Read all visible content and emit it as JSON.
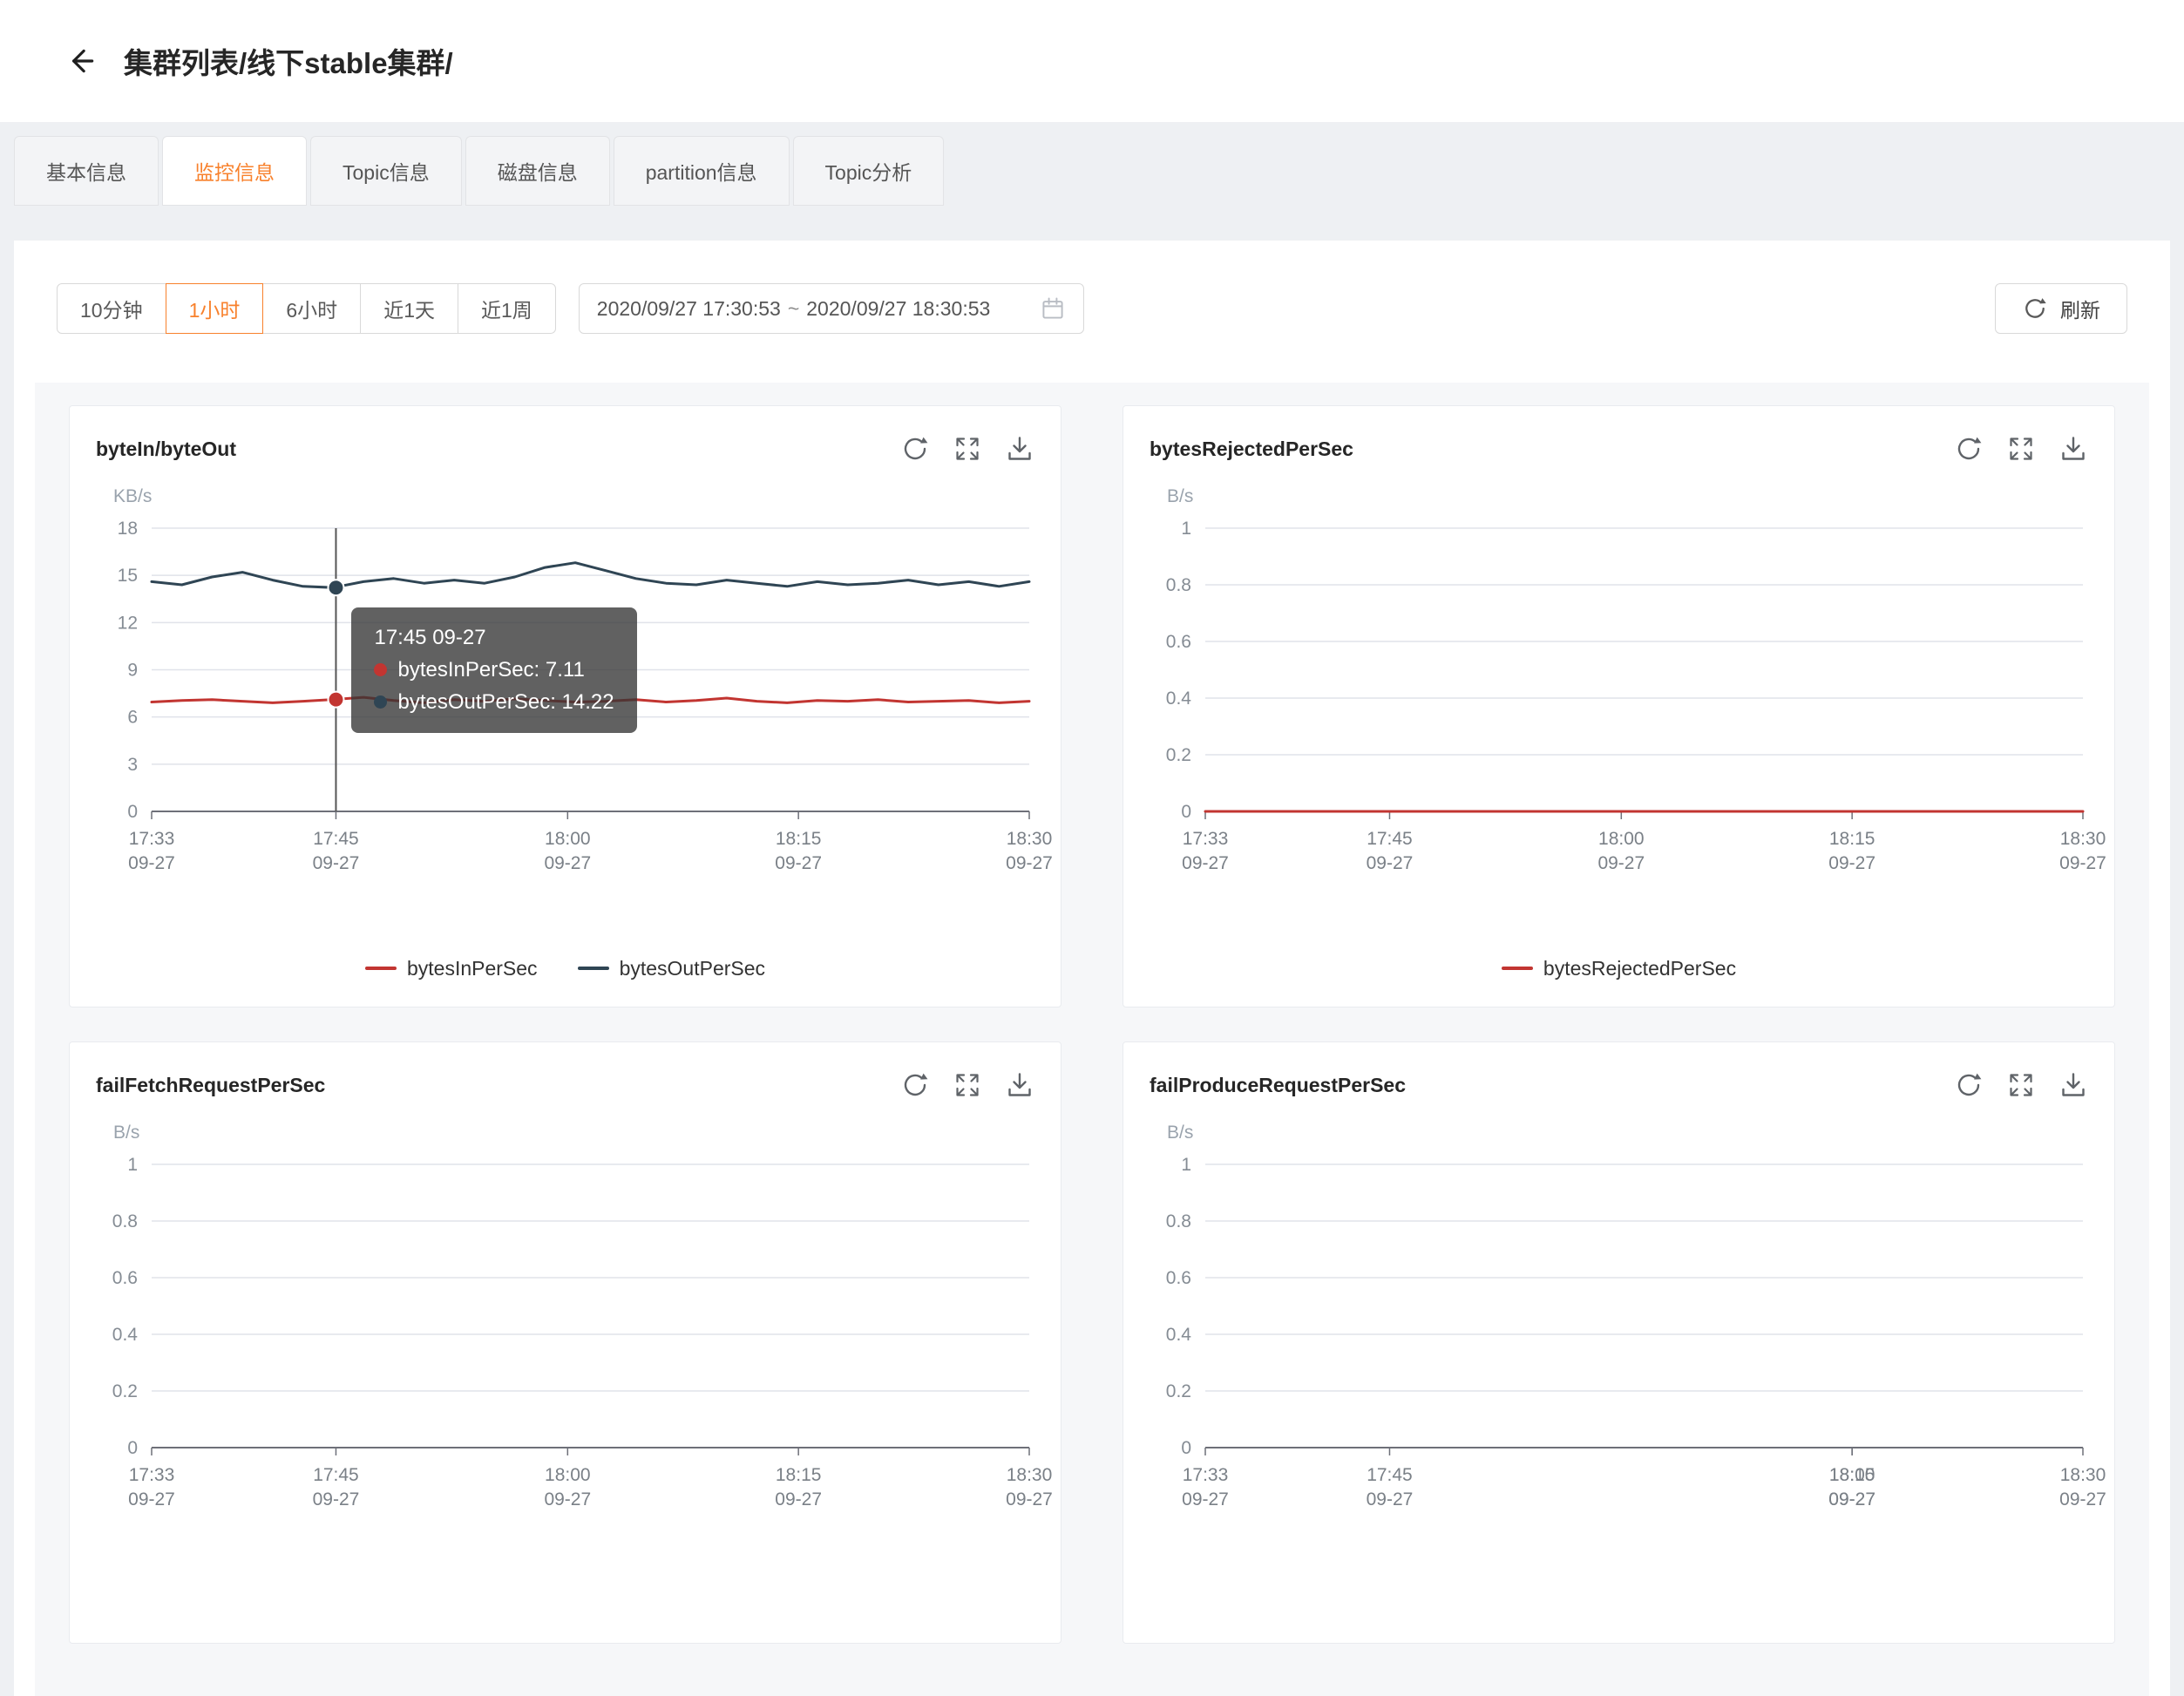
{
  "header": {
    "title": "集群列表/线下stable集群/"
  },
  "tabs": [
    {
      "id": "basic-info",
      "label": "基本信息",
      "active": false
    },
    {
      "id": "monitor-info",
      "label": "监控信息",
      "active": true
    },
    {
      "id": "topic-info",
      "label": "Topic信息",
      "active": false
    },
    {
      "id": "disk-info",
      "label": "磁盘信息",
      "active": false
    },
    {
      "id": "partition-info",
      "label": "partition信息",
      "active": false
    },
    {
      "id": "topic-analysis",
      "label": "Topic分析",
      "active": false
    }
  ],
  "toolbar": {
    "ranges": [
      {
        "id": "10min",
        "label": "10分钟",
        "active": false
      },
      {
        "id": "1hour",
        "label": "1小时",
        "active": true
      },
      {
        "id": "6hour",
        "label": "6小时",
        "active": false
      },
      {
        "id": "1day",
        "label": "近1天",
        "active": false
      },
      {
        "id": "1week",
        "label": "近1周",
        "active": false
      }
    ],
    "date_range": {
      "start": "2020/09/27 17:30:53",
      "separator": "~",
      "end": "2020/09/27 18:30:53"
    },
    "refresh_label": "刷新"
  },
  "colors": {
    "accent": "#f8812c",
    "series_red": "#c23531",
    "series_dark": "#2f4554"
  },
  "chart_data": [
    {
      "id": "byteIn-byteOut",
      "type": "line",
      "title": "byteIn/byteOut",
      "unit": "KB/s",
      "ylim": [
        0,
        18
      ],
      "yticks": [
        0,
        3,
        6,
        9,
        12,
        15,
        18
      ],
      "x_labels": [
        {
          "time": "17:33",
          "date": "09-27",
          "frac": 0
        },
        {
          "time": "17:45",
          "date": "09-27",
          "frac": 0.21
        },
        {
          "time": "18:00",
          "date": "09-27",
          "frac": 0.474
        },
        {
          "time": "18:15",
          "date": "09-27",
          "frac": 0.737
        },
        {
          "time": "18:30",
          "date": "09-27",
          "frac": 1
        }
      ],
      "series": [
        {
          "name": "bytesInPerSec",
          "color": "#c23531",
          "values": [
            6.95,
            7.05,
            7.1,
            7.0,
            6.9,
            7.0,
            7.11,
            7.25,
            7.05,
            6.9,
            7.1,
            7.0,
            7.15,
            7.05,
            6.95,
            7.0,
            7.1,
            6.95,
            7.05,
            7.2,
            7.0,
            6.9,
            7.05,
            7.0,
            7.1,
            6.95,
            7.0,
            7.05,
            6.9,
            7.0
          ]
        },
        {
          "name": "bytesOutPerSec",
          "color": "#2f4554",
          "values": [
            14.6,
            14.4,
            14.9,
            15.2,
            14.7,
            14.3,
            14.22,
            14.6,
            14.8,
            14.5,
            14.7,
            14.5,
            14.9,
            15.5,
            15.8,
            15.3,
            14.8,
            14.5,
            14.4,
            14.7,
            14.5,
            14.3,
            14.6,
            14.4,
            14.5,
            14.7,
            14.4,
            14.6,
            14.3,
            14.6
          ]
        }
      ],
      "tooltip": {
        "frac": 0.21,
        "title": "17:45 09-27",
        "items": [
          {
            "text": "bytesInPerSec: 7.11",
            "value": 7.11,
            "color": "#c23531"
          },
          {
            "text": "bytesOutPerSec: 14.22",
            "value": 14.22,
            "color": "#2f4554"
          }
        ]
      }
    },
    {
      "id": "bytesRejectedPerSec",
      "type": "line",
      "title": "bytesRejectedPerSec",
      "unit": "B/s",
      "ylim": [
        0,
        1
      ],
      "yticks": [
        0,
        0.2,
        0.4,
        0.6,
        0.8,
        1
      ],
      "x_labels": [
        {
          "time": "17:33",
          "date": "09-27",
          "frac": 0
        },
        {
          "time": "17:45",
          "date": "09-27",
          "frac": 0.21
        },
        {
          "time": "18:00",
          "date": "09-27",
          "frac": 0.474
        },
        {
          "time": "18:15",
          "date": "09-27",
          "frac": 0.737
        },
        {
          "time": "18:30",
          "date": "09-27",
          "frac": 1
        }
      ],
      "series": [
        {
          "name": "bytesRejectedPerSec",
          "color": "#c23531",
          "values": [
            0,
            0,
            0,
            0,
            0,
            0,
            0,
            0,
            0,
            0,
            0,
            0,
            0,
            0,
            0,
            0,
            0,
            0,
            0,
            0,
            0,
            0,
            0,
            0,
            0,
            0,
            0,
            0,
            0,
            0
          ]
        }
      ]
    },
    {
      "id": "failFetchRequestPerSec",
      "type": "line",
      "title": "failFetchRequestPerSec",
      "unit": "B/s",
      "ylim": [
        0,
        1
      ],
      "yticks": [
        0,
        0.2,
        0.4,
        0.6,
        0.8,
        1
      ],
      "x_labels": [
        {
          "time": "17:33",
          "date": "09-27",
          "frac": 0
        },
        {
          "time": "17:45",
          "date": "09-27",
          "frac": 0.21
        },
        {
          "time": "18:00",
          "date": "09-27",
          "frac": 0.474
        },
        {
          "time": "18:15",
          "date": "09-27",
          "frac": 0.737
        },
        {
          "time": "18:30",
          "date": "09-27",
          "frac": 1
        }
      ],
      "series": []
    },
    {
      "id": "failProduceRequestPerSec",
      "type": "line",
      "title": "failProduceRequestPerSec",
      "unit": "B/s",
      "ylim": [
        0,
        1
      ],
      "yticks": [
        0,
        0.2,
        0.4,
        0.6,
        0.8,
        1
      ],
      "x_labels": [
        {
          "time": "17:33",
          "date": "09-27",
          "frac": 0
        },
        {
          "time": "17:45",
          "date": "09-27",
          "frac": 0.21
        },
        {
          "time": "18:00",
          "date": "09-27",
          "frac": 0.737
        },
        {
          "time": "18:15",
          "date": "09-27",
          "frac": 0.737
        },
        {
          "time": "18:30",
          "date": "09-27",
          "frac": 1
        }
      ],
      "series": []
    }
  ]
}
